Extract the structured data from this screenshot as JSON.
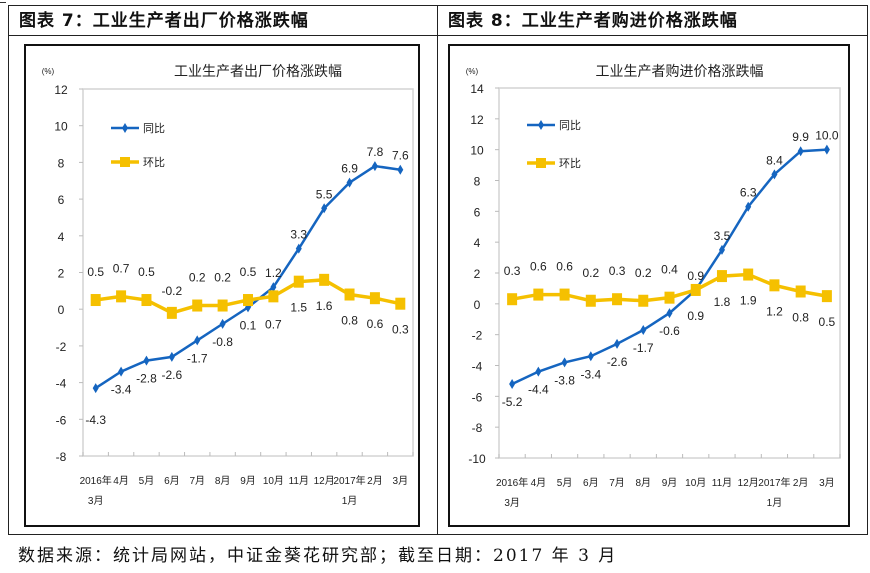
{
  "panels": [
    {
      "header": "图表 7：工业生产者出厂价格涨跌幅",
      "chart_title": "工业生产者出厂价格涨跌幅",
      "unit_label": "(%)"
    },
    {
      "header": "图表 8：工业生产者购进价格涨跌幅",
      "chart_title": "工业生产者购进价格涨跌幅",
      "unit_label": "(%)"
    }
  ],
  "colors": {
    "yoy": "#1565C0",
    "mom": "#F5C000",
    "axis": "#cccccc"
  },
  "footer": "数据来源：统计局网站，中证金葵花研究部；截至日期：2017 年 3 月",
  "chart_data": [
    {
      "type": "line",
      "title": "工业生产者出厂价格涨跌幅",
      "ylabel": "(%)",
      "ylim": [
        -8,
        12
      ],
      "yticks": [
        -8,
        -6,
        -4,
        -2,
        0,
        2,
        4,
        6,
        8,
        10,
        12
      ],
      "categories": [
        [
          "2016年",
          "3月"
        ],
        [
          "4月"
        ],
        [
          "5月"
        ],
        [
          "6月"
        ],
        [
          "7月"
        ],
        [
          "8月"
        ],
        [
          "9月"
        ],
        [
          "10月"
        ],
        [
          "11月"
        ],
        [
          "12月"
        ],
        [
          "2017年",
          "1月"
        ],
        [
          "2月"
        ],
        [
          "3月"
        ]
      ],
      "legend": "top-left",
      "series": [
        {
          "name": "同比",
          "color": "#1565C0",
          "values": [
            -4.3,
            -3.4,
            -2.8,
            -2.6,
            -1.7,
            -0.8,
            0.1,
            1.2,
            3.3,
            5.5,
            6.9,
            7.8,
            7.6
          ]
        },
        {
          "name": "环比",
          "color": "#F5C000",
          "values": [
            0.5,
            0.7,
            0.5,
            -0.2,
            0.2,
            0.2,
            0.5,
            0.7,
            1.5,
            1.6,
            0.8,
            0.6,
            0.3
          ]
        }
      ]
    },
    {
      "type": "line",
      "title": "工业生产者购进价格涨跌幅",
      "ylabel": "(%)",
      "ylim": [
        -10,
        14
      ],
      "yticks": [
        -10,
        -8,
        -6,
        -4,
        -2,
        0,
        2,
        4,
        6,
        8,
        10,
        12,
        14
      ],
      "categories": [
        [
          "2016年",
          "3月"
        ],
        [
          "4月"
        ],
        [
          "5月"
        ],
        [
          "6月"
        ],
        [
          "7月"
        ],
        [
          "8月"
        ],
        [
          "9月"
        ],
        [
          "10月"
        ],
        [
          "11月"
        ],
        [
          "12月"
        ],
        [
          "2017年",
          "1月"
        ],
        [
          "2月"
        ],
        [
          "3月"
        ]
      ],
      "legend": "top-left",
      "series": [
        {
          "name": "同比",
          "color": "#1565C0",
          "values": [
            -5.2,
            -4.4,
            -3.8,
            -3.4,
            -2.6,
            -1.7,
            -0.6,
            0.9,
            3.5,
            6.3,
            8.4,
            9.9,
            10.0
          ]
        },
        {
          "name": "环比",
          "color": "#F5C000",
          "values": [
            0.3,
            0.6,
            0.6,
            0.2,
            0.3,
            0.2,
            0.4,
            0.9,
            1.8,
            1.9,
            1.2,
            0.8,
            0.5
          ]
        }
      ]
    }
  ]
}
